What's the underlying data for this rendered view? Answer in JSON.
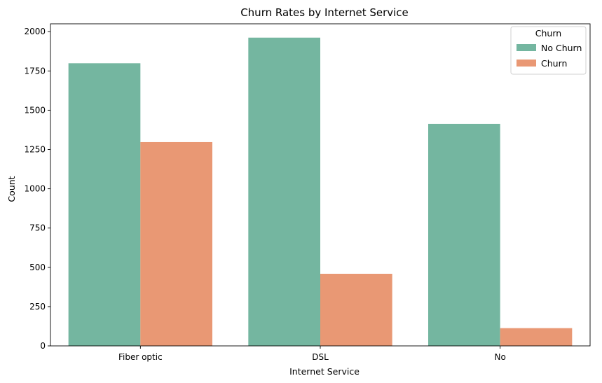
{
  "chart_data": {
    "type": "bar",
    "title": "Churn Rates by Internet Service",
    "xlabel": "Internet Service",
    "ylabel": "Count",
    "categories": [
      "Fiber optic",
      "DSL",
      "No"
    ],
    "series": [
      {
        "name": "No Churn",
        "values": [
          1799,
          1962,
          1413
        ],
        "color": "#74b6a0"
      },
      {
        "name": "Churn",
        "values": [
          1297,
          459,
          113
        ],
        "color": "#e99874"
      }
    ],
    "ylim": [
      0,
      2050
    ],
    "yticks": [
      0,
      250,
      500,
      750,
      1000,
      1250,
      1500,
      1750,
      2000
    ],
    "grid": false,
    "legend": {
      "title": "Churn",
      "position": "top-right"
    }
  }
}
